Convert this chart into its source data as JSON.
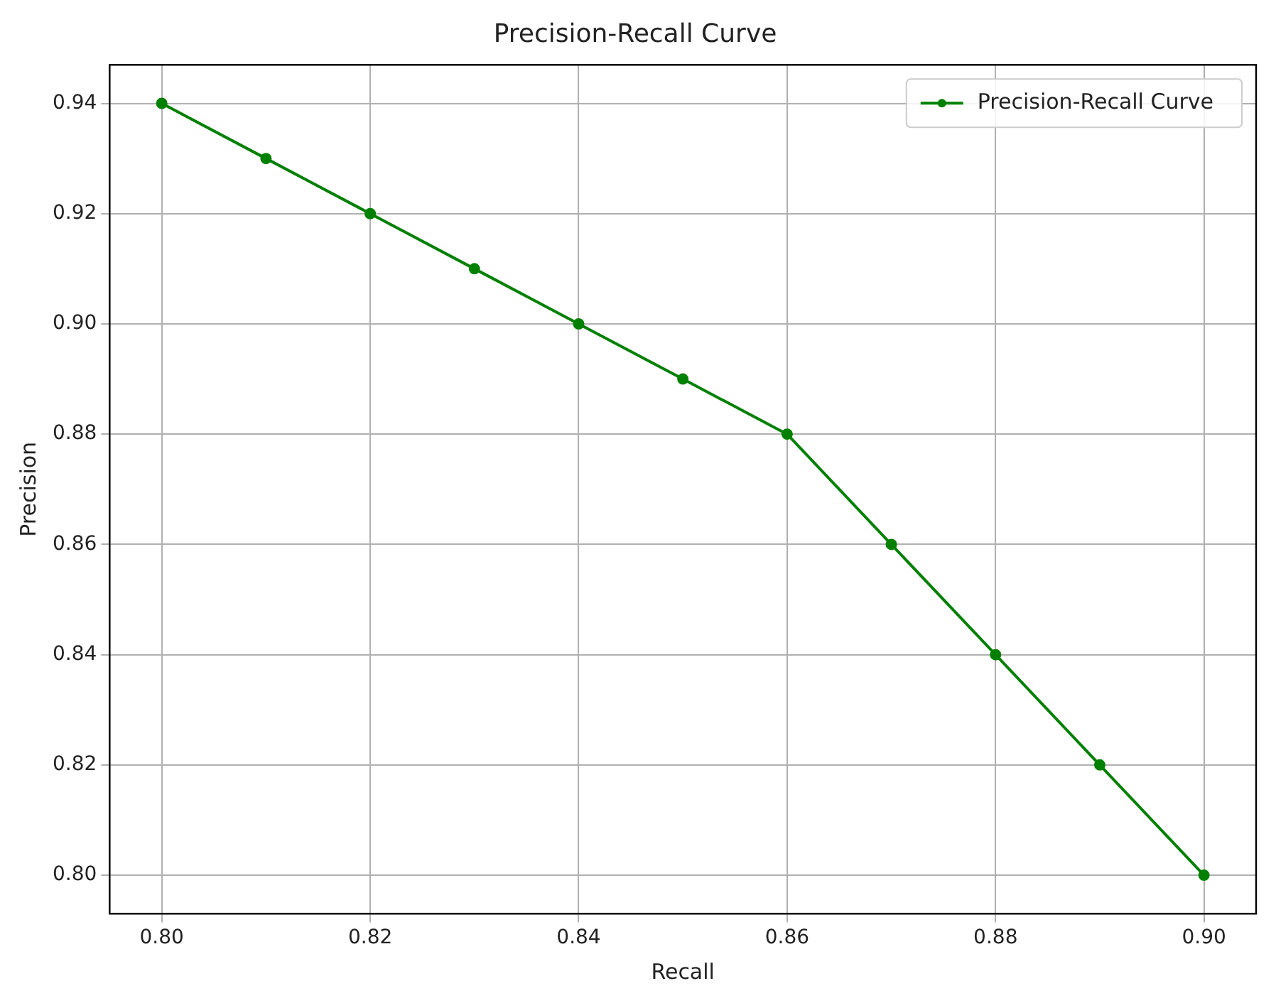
{
  "chart_data": {
    "type": "line",
    "title": "Precision-Recall Curve",
    "xlabel": "Recall",
    "ylabel": "Precision",
    "x": [
      0.8,
      0.81,
      0.82,
      0.83,
      0.84,
      0.85,
      0.86,
      0.87,
      0.88,
      0.89,
      0.9
    ],
    "series": [
      {
        "name": "Precision-Recall Curve",
        "color": "#008000",
        "values": [
          0.94,
          0.93,
          0.92,
          0.91,
          0.9,
          0.89,
          0.88,
          0.86,
          0.84,
          0.82,
          0.8
        ]
      }
    ],
    "xlim": [
      0.795,
      0.905
    ],
    "xticks": [
      {
        "value": 0.8,
        "label": "0.80"
      },
      {
        "value": 0.82,
        "label": "0.82"
      },
      {
        "value": 0.84,
        "label": "0.84"
      },
      {
        "value": 0.86,
        "label": "0.86"
      },
      {
        "value": 0.88,
        "label": "0.88"
      },
      {
        "value": 0.9,
        "label": "0.90"
      }
    ],
    "ylim": [
      0.793,
      0.947
    ],
    "yticks": [
      {
        "value": 0.8,
        "label": "0.80"
      },
      {
        "value": 0.82,
        "label": "0.82"
      },
      {
        "value": 0.84,
        "label": "0.84"
      },
      {
        "value": 0.86,
        "label": "0.86"
      },
      {
        "value": 0.88,
        "label": "0.88"
      },
      {
        "value": 0.9,
        "label": "0.90"
      },
      {
        "value": 0.92,
        "label": "0.92"
      },
      {
        "value": 0.94,
        "label": "0.94"
      }
    ],
    "grid": true,
    "legend": "top right",
    "marker": "circle",
    "line_style": "solid"
  }
}
